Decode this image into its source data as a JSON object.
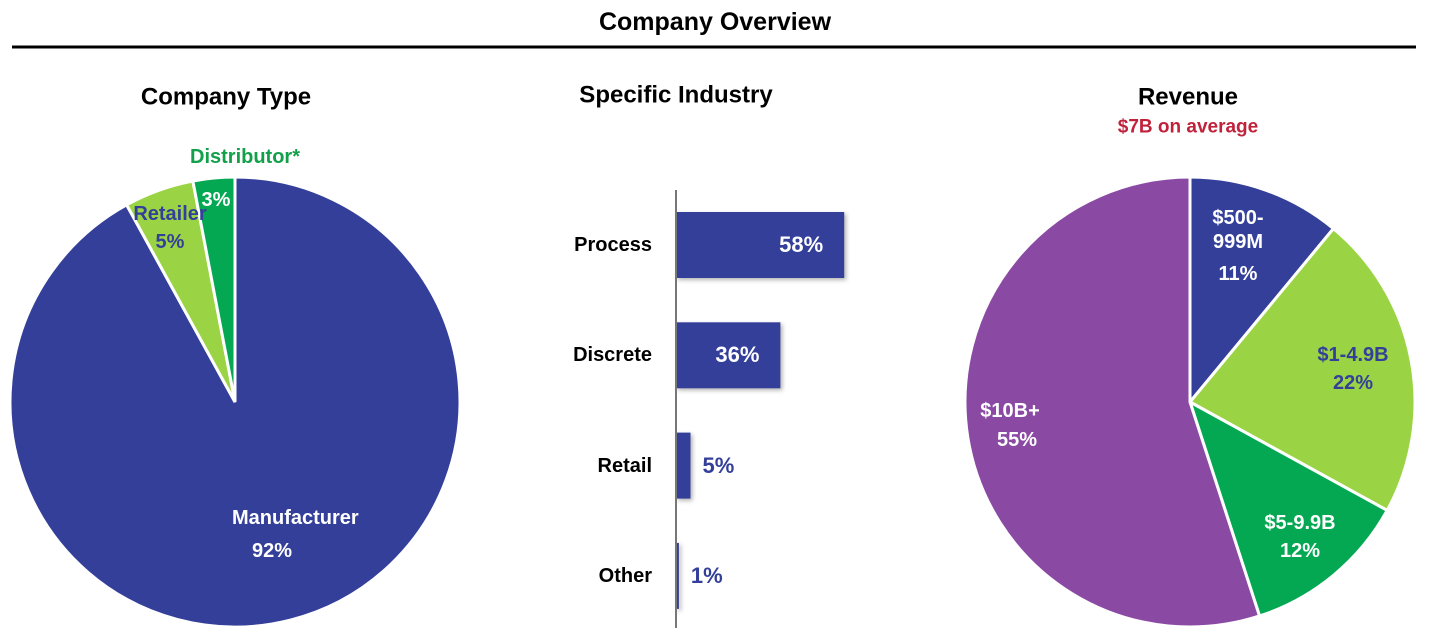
{
  "title": "Company Overview",
  "chart_data": [
    {
      "type": "pie",
      "title": "Company Type",
      "categories": [
        "Manufacturer",
        "Retailer",
        "Distributor*"
      ],
      "values": [
        92,
        5,
        3
      ],
      "value_labels": [
        "92%",
        "5%",
        "3%"
      ],
      "colors": [
        "#343f9a",
        "#9ad444",
        "#05a852"
      ]
    },
    {
      "type": "bar",
      "title": "Specific Industry",
      "categories": [
        "Process",
        "Discrete",
        "Retail",
        "Other"
      ],
      "values": [
        58,
        36,
        5,
        1
      ],
      "value_labels": [
        "58%",
        "36%",
        "5%",
        "1%"
      ],
      "color": "#343f9a"
    },
    {
      "type": "pie",
      "title": "Revenue",
      "subtitle": "$7B on average",
      "categories": [
        "$500-999M",
        "$1-4.9B",
        "$5-9.9B",
        "$10B+"
      ],
      "values": [
        11,
        22,
        12,
        55
      ],
      "value_labels": [
        "11%",
        "22%",
        "12%",
        "55%"
      ],
      "colors": [
        "#343f9a",
        "#9ad444",
        "#05a852",
        "#8a4aa3"
      ]
    }
  ]
}
